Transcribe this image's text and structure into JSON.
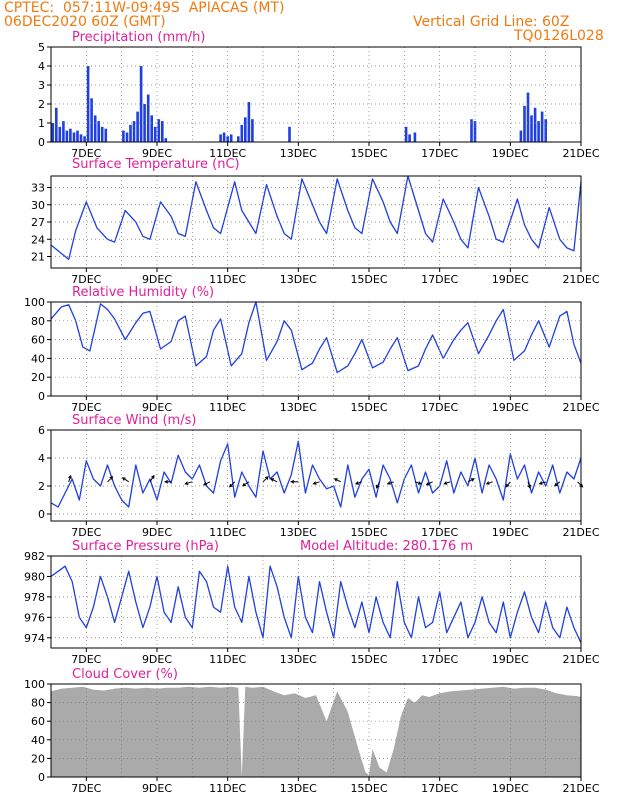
{
  "header": {
    "line1": "CPTEC:  057:11W-09:49S  APIACAS (MT)",
    "line2": "06DEC2020 60Z (GMT)",
    "right1": "Vertical Grid Line: 60Z",
    "right2": "TQ0126L028",
    "altitude": "Model Altitude: 280.176 m"
  },
  "colors": {
    "header": "#f07a10",
    "title": "#e0209a",
    "line": "#1f3fe0",
    "bar": "#1f3fe0",
    "cloud": "#aaaaaa"
  },
  "x_ticks": [
    "7DEC",
    "9DEC",
    "11DEC",
    "13DEC",
    "15DEC",
    "17DEC",
    "19DEC",
    "21DEC"
  ],
  "chart_data": [
    {
      "type": "bar",
      "title": "Precipitation (mm/h)",
      "x_unit": "day of December 2020",
      "ylim": [
        0,
        5
      ],
      "yticks": [
        "0",
        "1",
        "2",
        "3",
        "4",
        "5"
      ],
      "x": [
        6.05,
        6.15,
        6.25,
        6.35,
        6.45,
        6.55,
        6.65,
        6.75,
        6.85,
        6.95,
        7.05,
        7.15,
        7.25,
        7.35,
        7.45,
        7.55,
        8.05,
        8.15,
        8.25,
        8.35,
        8.45,
        8.55,
        8.65,
        8.75,
        8.85,
        8.95,
        9.05,
        9.15,
        9.25,
        10.8,
        10.9,
        11.0,
        11.1,
        11.3,
        11.4,
        11.5,
        11.6,
        11.7,
        12.75,
        16.05,
        16.15,
        16.3,
        17.9,
        18.0,
        19.3,
        19.4,
        19.5,
        19.6,
        19.7,
        19.8,
        19.9,
        20.0
      ],
      "values": [
        1.0,
        1.8,
        0.8,
        1.1,
        0.6,
        0.7,
        0.5,
        0.6,
        0.4,
        0.3,
        4.0,
        2.3,
        1.4,
        1.1,
        0.8,
        0.7,
        0.6,
        0.5,
        0.9,
        1.1,
        1.6,
        4.0,
        2.0,
        2.5,
        1.4,
        0.8,
        1.2,
        1.1,
        0.2,
        0.4,
        0.5,
        0.3,
        0.4,
        0.3,
        0.9,
        1.3,
        2.1,
        1.2,
        0.8,
        0.8,
        0.4,
        0.5,
        1.2,
        1.1,
        0.6,
        1.9,
        2.6,
        1.4,
        1.8,
        1.1,
        1.6,
        1.2
      ]
    },
    {
      "type": "line",
      "title": "Surface Temperature (nC)",
      "x_unit": "day of December 2020",
      "ylim": [
        19,
        35
      ],
      "yticks": [
        "21",
        "24",
        "27",
        "30",
        "33"
      ],
      "x": [
        6.0,
        6.3,
        6.5,
        6.7,
        7.0,
        7.3,
        7.6,
        7.8,
        8.1,
        8.4,
        8.6,
        8.8,
        9.1,
        9.4,
        9.6,
        9.8,
        10.1,
        10.4,
        10.6,
        10.8,
        11.2,
        11.4,
        11.6,
        11.8,
        12.1,
        12.4,
        12.6,
        12.8,
        13.1,
        13.4,
        13.6,
        13.8,
        14.1,
        14.4,
        14.6,
        14.8,
        15.1,
        15.4,
        15.6,
        15.8,
        16.1,
        16.4,
        16.6,
        16.8,
        17.1,
        17.4,
        17.6,
        17.8,
        18.1,
        18.4,
        18.6,
        18.8,
        19.2,
        19.4,
        19.6,
        19.8,
        20.1,
        20.4,
        20.6,
        20.8,
        21.0
      ],
      "values": [
        23.0,
        21.5,
        20.5,
        25.5,
        30.5,
        26.0,
        24.0,
        23.5,
        29.0,
        27.0,
        24.5,
        24.0,
        30.5,
        28.0,
        25.0,
        24.5,
        34.0,
        29.0,
        26.0,
        25.0,
        34.0,
        29.0,
        27.0,
        25.0,
        33.5,
        28.0,
        25.0,
        24.0,
        34.5,
        30.0,
        27.0,
        25.0,
        34.5,
        29.0,
        26.0,
        25.0,
        34.5,
        30.5,
        27.0,
        25.0,
        35.0,
        29.0,
        25.0,
        23.5,
        31.0,
        27.0,
        24.0,
        22.5,
        33.0,
        28.0,
        24.0,
        23.5,
        31.0,
        26.5,
        24.0,
        22.5,
        29.5,
        24.0,
        22.5,
        22.0,
        34.0
      ]
    },
    {
      "type": "line",
      "title": "Relative Humidity (%)",
      "x_unit": "day of December 2020",
      "ylim": [
        0,
        100
      ],
      "yticks": [
        "0",
        "20",
        "40",
        "60",
        "80",
        "100"
      ],
      "x": [
        6.0,
        6.3,
        6.5,
        6.7,
        6.9,
        7.1,
        7.4,
        7.6,
        7.8,
        8.1,
        8.4,
        8.6,
        8.8,
        9.1,
        9.4,
        9.6,
        9.8,
        10.1,
        10.4,
        10.6,
        10.8,
        11.1,
        11.4,
        11.6,
        11.8,
        12.1,
        12.4,
        12.6,
        12.8,
        13.1,
        13.4,
        13.6,
        13.8,
        14.1,
        14.4,
        14.6,
        14.8,
        15.1,
        15.4,
        15.6,
        15.8,
        16.1,
        16.4,
        16.6,
        16.8,
        17.1,
        17.4,
        17.6,
        17.8,
        18.1,
        18.4,
        18.6,
        18.8,
        19.1,
        19.4,
        19.6,
        19.8,
        20.1,
        20.4,
        20.6,
        20.8,
        21.0
      ],
      "values": [
        82.0,
        95.0,
        97.0,
        80.0,
        52.0,
        48.0,
        98.0,
        92.0,
        82.0,
        60.0,
        78.0,
        88.0,
        90.0,
        50.0,
        58.0,
        80.0,
        85.0,
        32.0,
        42.0,
        70.0,
        82.0,
        32.0,
        45.0,
        78.0,
        100.0,
        38.0,
        58.0,
        80.0,
        70.0,
        28.0,
        35.0,
        50.0,
        62.0,
        25.0,
        32.0,
        45.0,
        60.0,
        30.0,
        36.0,
        50.0,
        62.0,
        27.0,
        32.0,
        50.0,
        65.0,
        40.0,
        60.0,
        70.0,
        78.0,
        45.0,
        65.0,
        80.0,
        92.0,
        38.0,
        48.0,
        65.0,
        80.0,
        52.0,
        85.0,
        90.0,
        55.0,
        35.0
      ]
    },
    {
      "type": "line",
      "title": "Surface Wind (m/s)",
      "x_unit": "day of December 2020",
      "ylim": [
        -0.5,
        6
      ],
      "yticks": [
        "0",
        "2",
        "4",
        "6"
      ],
      "x": [
        6.0,
        6.2,
        6.4,
        6.6,
        6.8,
        7.0,
        7.2,
        7.4,
        7.6,
        7.8,
        8.0,
        8.2,
        8.4,
        8.6,
        8.8,
        9.0,
        9.2,
        9.4,
        9.6,
        9.8,
        10.0,
        10.2,
        10.4,
        10.6,
        10.8,
        11.0,
        11.2,
        11.4,
        11.6,
        11.8,
        12.0,
        12.2,
        12.4,
        12.6,
        12.8,
        13.0,
        13.2,
        13.4,
        13.6,
        13.8,
        14.0,
        14.2,
        14.4,
        14.6,
        14.8,
        15.0,
        15.2,
        15.4,
        15.6,
        15.8,
        16.0,
        16.2,
        16.4,
        16.6,
        16.8,
        17.0,
        17.2,
        17.4,
        17.6,
        17.8,
        18.0,
        18.2,
        18.4,
        18.6,
        18.8,
        19.0,
        19.2,
        19.4,
        19.6,
        19.8,
        20.0,
        20.2,
        20.4,
        20.6,
        20.8,
        21.0
      ],
      "values": [
        0.8,
        0.5,
        1.5,
        2.5,
        1.0,
        3.8,
        2.5,
        2.0,
        3.5,
        2.0,
        1.0,
        0.5,
        3.5,
        1.5,
        2.5,
        1.0,
        3.0,
        2.2,
        4.2,
        3.0,
        2.5,
        3.5,
        2.0,
        1.5,
        3.8,
        5.0,
        1.2,
        3.0,
        2.0,
        1.2,
        4.5,
        2.5,
        3.0,
        1.5,
        2.8,
        5.2,
        1.5,
        3.5,
        2.5,
        1.8,
        2.0,
        0.5,
        3.5,
        1.2,
        2.5,
        3.2,
        1.2,
        3.5,
        2.5,
        0.8,
        2.5,
        3.5,
        1.5,
        3.0,
        1.5,
        2.0,
        3.8,
        1.5,
        3.0,
        2.0,
        4.0,
        1.5,
        3.5,
        2.5,
        1.0,
        4.3,
        2.5,
        3.5,
        1.5,
        3.0,
        2.0,
        3.5,
        1.5,
        3.0,
        2.5,
        4.0
      ],
      "arrows": [
        {
          "x": 6.5,
          "dx": 2,
          "dy": -6
        },
        {
          "x": 7.6,
          "dx": 5,
          "dy": -5
        },
        {
          "x": 8.2,
          "dx": -6,
          "dy": -4
        },
        {
          "x": 8.8,
          "dx": 4,
          "dy": -6
        },
        {
          "x": 9.4,
          "dx": -6,
          "dy": 0
        },
        {
          "x": 10.0,
          "dx": -7,
          "dy": 2
        },
        {
          "x": 10.5,
          "dx": -6,
          "dy": 3
        },
        {
          "x": 11.2,
          "dx": -5,
          "dy": 5
        },
        {
          "x": 11.6,
          "dx": -6,
          "dy": 4
        },
        {
          "x": 12.0,
          "dx": 5,
          "dy": -5
        },
        {
          "x": 12.4,
          "dx": -6,
          "dy": -3
        },
        {
          "x": 13.0,
          "dx": -7,
          "dy": 0
        },
        {
          "x": 13.6,
          "dx": -6,
          "dy": 2
        },
        {
          "x": 14.2,
          "dx": -6,
          "dy": -3
        },
        {
          "x": 14.8,
          "dx": -6,
          "dy": 2
        },
        {
          "x": 15.3,
          "dx": -3,
          "dy": 6
        },
        {
          "x": 15.7,
          "dx": -6,
          "dy": 2
        },
        {
          "x": 16.3,
          "dx": 6,
          "dy": 2
        },
        {
          "x": 16.8,
          "dx": -6,
          "dy": 3
        },
        {
          "x": 17.3,
          "dx": -6,
          "dy": 2
        },
        {
          "x": 17.8,
          "dx": 6,
          "dy": -3
        },
        {
          "x": 18.5,
          "dx": -6,
          "dy": 2
        },
        {
          "x": 19.0,
          "dx": -4,
          "dy": 5
        },
        {
          "x": 19.5,
          "dx": 2,
          "dy": 6
        },
        {
          "x": 20.0,
          "dx": -6,
          "dy": 2
        },
        {
          "x": 20.4,
          "dx": -5,
          "dy": 4
        },
        {
          "x": 20.9,
          "dx": 5,
          "dy": 5
        }
      ]
    },
    {
      "type": "line",
      "title": "Surface Pressure (hPa)",
      "x_unit": "day of December 2020",
      "ylim": [
        973,
        982
      ],
      "yticks": [
        "974",
        "976",
        "978",
        "980",
        "982"
      ],
      "x": [
        6.0,
        6.2,
        6.4,
        6.6,
        6.8,
        7.0,
        7.2,
        7.4,
        7.6,
        7.8,
        8.0,
        8.2,
        8.4,
        8.6,
        8.8,
        9.0,
        9.2,
        9.4,
        9.6,
        9.8,
        10.0,
        10.2,
        10.4,
        10.6,
        10.8,
        11.0,
        11.2,
        11.4,
        11.6,
        11.8,
        12.0,
        12.2,
        12.4,
        12.6,
        12.8,
        13.0,
        13.2,
        13.4,
        13.6,
        13.8,
        14.0,
        14.2,
        14.4,
        14.6,
        14.8,
        15.0,
        15.2,
        15.4,
        15.6,
        15.8,
        16.0,
        16.2,
        16.4,
        16.6,
        16.8,
        17.0,
        17.2,
        17.4,
        17.6,
        17.8,
        18.0,
        18.2,
        18.4,
        18.6,
        18.8,
        19.0,
        19.2,
        19.4,
        19.6,
        19.8,
        20.0,
        20.2,
        20.4,
        20.6,
        20.8,
        21.0
      ],
      "values": [
        980.0,
        980.5,
        981.0,
        979.5,
        976.0,
        975.0,
        977.0,
        980.0,
        978.0,
        975.5,
        978.0,
        980.5,
        977.5,
        975.0,
        977.0,
        980.0,
        976.5,
        975.5,
        979.0,
        976.0,
        975.0,
        980.5,
        979.5,
        977.0,
        976.5,
        981.0,
        977.0,
        975.5,
        980.0,
        976.5,
        974.0,
        981.0,
        979.0,
        976.0,
        974.0,
        980.0,
        976.0,
        974.5,
        979.5,
        976.5,
        974.0,
        979.5,
        977.0,
        975.0,
        977.5,
        974.5,
        978.0,
        975.5,
        974.0,
        979.5,
        975.5,
        974.0,
        978.0,
        975.0,
        975.5,
        978.5,
        974.5,
        976.0,
        977.5,
        974.0,
        975.5,
        978.0,
        975.5,
        974.5,
        977.5,
        974.0,
        976.5,
        978.5,
        976.0,
        974.5,
        977.5,
        975.0,
        974.0,
        977.0,
        975.0,
        973.5
      ]
    },
    {
      "type": "area",
      "title": "Cloud Cover (%)",
      "x_unit": "day of December 2020",
      "ylim": [
        0,
        100
      ],
      "yticks": [
        "0",
        "20",
        "40",
        "60",
        "80",
        "100"
      ],
      "x": [
        6.0,
        6.3,
        6.6,
        6.9,
        7.2,
        7.5,
        7.8,
        8.1,
        8.4,
        8.7,
        9.0,
        9.3,
        9.6,
        9.9,
        10.2,
        10.5,
        10.8,
        11.1,
        11.3,
        11.4,
        11.5,
        11.7,
        12.0,
        12.3,
        12.6,
        12.9,
        13.2,
        13.5,
        13.8,
        14.1,
        14.4,
        14.7,
        14.9,
        15.0,
        15.1,
        15.3,
        15.5,
        15.7,
        15.9,
        16.1,
        16.3,
        16.5,
        16.7,
        17.0,
        17.3,
        17.6,
        17.9,
        18.2,
        18.5,
        18.8,
        19.1,
        19.4,
        19.7,
        20.0,
        20.3,
        20.6,
        20.9,
        21.0
      ],
      "values": [
        92,
        95,
        96,
        97,
        94,
        93,
        95,
        96,
        95,
        96,
        95,
        96,
        96,
        97,
        96,
        97,
        96,
        97,
        96,
        0,
        97,
        96,
        97,
        92,
        88,
        90,
        85,
        88,
        60,
        92,
        70,
        30,
        5,
        2,
        30,
        10,
        5,
        30,
        65,
        85,
        80,
        88,
        86,
        90,
        92,
        93,
        94,
        95,
        96,
        97,
        95,
        96,
        96,
        94,
        90,
        88,
        87,
        86
      ]
    }
  ]
}
